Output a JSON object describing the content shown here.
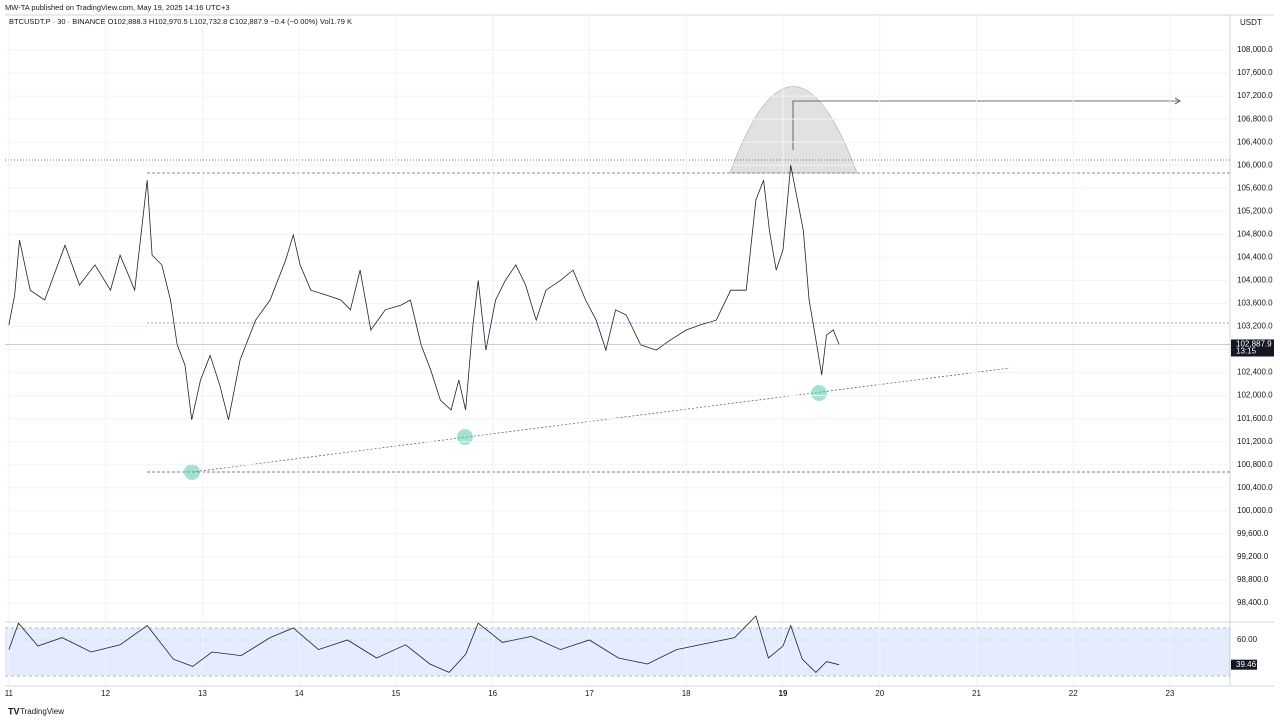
{
  "header": {
    "publisher": "MW-TA published on TradingView.com, May 19, 2025 14:16 UTC+3",
    "legend": "BTCUSDT.P · 30 · BINANCE  O102,888.3  H102,970.5  L102,732.8  C102,887.9  −0.4 (−0.00%)  Vol1.79 K",
    "currency": "USDT",
    "brand": "TradingView"
  },
  "chart_data": [
    {
      "type": "line",
      "color": "#222222",
      "x": [
        11.0,
        11.06,
        11.11,
        11.22,
        11.37,
        11.58,
        11.73,
        11.89,
        12.05,
        12.15,
        12.3,
        12.43,
        12.48,
        12.58,
        12.67,
        12.74,
        12.82,
        12.89,
        12.98,
        13.08,
        13.18,
        13.27,
        13.39,
        13.55,
        13.7,
        13.86,
        13.94,
        14.01,
        14.12,
        14.27,
        14.43,
        14.53,
        14.63,
        14.74,
        14.89,
        15.05,
        15.15,
        15.26,
        15.36,
        15.46,
        15.57,
        15.65,
        15.72,
        15.79,
        15.85,
        15.93,
        16.03,
        16.13,
        16.24,
        16.34,
        16.45,
        16.55,
        16.7,
        16.83,
        16.96,
        17.07,
        17.17,
        17.27,
        17.38,
        17.53,
        17.69,
        17.84,
        18.0,
        18.15,
        18.31,
        18.46,
        18.62,
        18.72,
        18.8,
        18.86,
        18.93,
        19.0,
        19.08,
        19.14,
        19.21,
        19.27,
        19.34,
        19.4,
        19.45,
        19.52,
        19.58
      ],
      "values": [
        103226,
        103750,
        104700,
        103830,
        103660,
        104610,
        103920,
        104270,
        103830,
        104440,
        103830,
        105740,
        104440,
        104270,
        103660,
        102880,
        102530,
        101580,
        102270,
        102700,
        102180,
        101580,
        102620,
        103310,
        103660,
        104350,
        104790,
        104270,
        103830,
        103750,
        103660,
        103490,
        104180,
        103140,
        103490,
        103570,
        103660,
        102880,
        102440,
        101920,
        101750,
        102270,
        101750,
        103140,
        104000,
        102790,
        103660,
        104000,
        104270,
        103920,
        103310,
        103830,
        104000,
        104180,
        103660,
        103310,
        102790,
        103490,
        103400,
        102880,
        102790,
        102970,
        103140,
        103230,
        103310,
        103830,
        103830,
        105400,
        105740,
        104870,
        104180,
        104530,
        106000,
        105480,
        104870,
        103660,
        102970,
        102360,
        103050,
        103140,
        102887.9
      ],
      "xlim": [
        10.96,
        23.62
      ],
      "xticks": [
        11,
        12,
        13,
        14,
        15,
        16,
        17,
        18,
        19,
        20,
        21,
        22,
        23
      ],
      "ylim": [
        98070,
        108608
      ],
      "yticks": [
        {
          "value": 98400,
          "label": "98,400.0"
        },
        {
          "value": 98800,
          "label": "98,800.0"
        },
        {
          "value": 99200,
          "label": "99,200.0"
        },
        {
          "value": 99600,
          "label": "99,600.0"
        },
        {
          "value": 100000,
          "label": "100,000.0"
        },
        {
          "value": 100400,
          "label": "100,400.0"
        },
        {
          "value": 100800,
          "label": "100,800.0"
        },
        {
          "value": 101200,
          "label": "101,200.0"
        },
        {
          "value": 101600,
          "label": "101,600.0"
        },
        {
          "value": 102000,
          "label": "102,000.0"
        },
        {
          "value": 102400,
          "label": "102,400.0"
        },
        {
          "value": 102800,
          "label": "102,800.0"
        },
        {
          "value": 103200,
          "label": "103,200.0"
        },
        {
          "value": 103600,
          "label": "103,600.0"
        },
        {
          "value": 104000,
          "label": "104,000.0"
        },
        {
          "value": 104400,
          "label": "104,400.0"
        },
        {
          "value": 104800,
          "label": "104,800.0"
        },
        {
          "value": 105200,
          "label": "105,200.0"
        },
        {
          "value": 105600,
          "label": "105,600.0"
        },
        {
          "value": 106000,
          "label": "106,000.0"
        },
        {
          "value": 106400,
          "label": "106,400.0"
        },
        {
          "value": 106800,
          "label": "106,800.0"
        },
        {
          "value": 107200,
          "label": "107,200.0"
        },
        {
          "value": 107600,
          "label": "107,600.0"
        },
        {
          "value": 108000,
          "label": "108,000.0"
        }
      ],
      "price_label": "102,887.9",
      "countdown": "13:15",
      "grid": true
    },
    {
      "type": "line",
      "color": "#222222",
      "x": [
        11.0,
        11.1,
        11.3,
        11.55,
        11.85,
        12.15,
        12.43,
        12.7,
        12.9,
        13.1,
        13.4,
        13.7,
        13.94,
        14.2,
        14.5,
        14.8,
        15.1,
        15.35,
        15.55,
        15.72,
        15.85,
        16.1,
        16.4,
        16.7,
        17.0,
        17.3,
        17.6,
        17.9,
        18.2,
        18.5,
        18.72,
        18.85,
        19.0,
        19.08,
        19.2,
        19.34,
        19.45,
        19.58
      ],
      "values": [
        52,
        74,
        55,
        62,
        50,
        56,
        72,
        44,
        38,
        50,
        47,
        62,
        70,
        52,
        60,
        45,
        56,
        40,
        33,
        48,
        74,
        58,
        63,
        52,
        60,
        45,
        40,
        52,
        57,
        62,
        80,
        45,
        55,
        72,
        44,
        33,
        42,
        39.46
      ],
      "ylim": [
        26.7,
        75
      ],
      "yticks": [
        {
          "value": 60,
          "label": "60.00"
        }
      ],
      "value_label": "39.46"
    }
  ]
}
